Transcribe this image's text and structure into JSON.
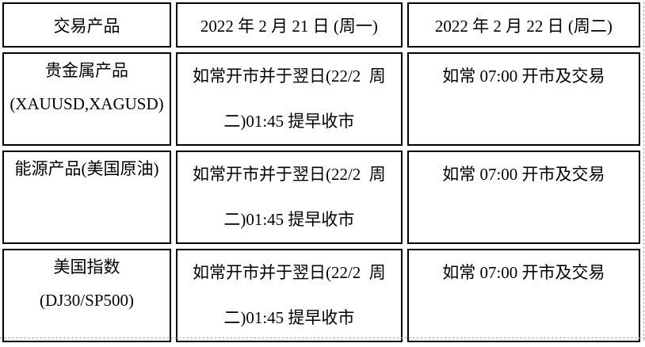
{
  "table": {
    "columns": [
      "交易产品",
      "2022 年 2 月 21 日 (周一)",
      "2022 年 2 月 22 日 (周二)"
    ],
    "rows": [
      {
        "product": {
          "line1": "贵金属产品",
          "line2": "(XAUUSD,XAGUSD)"
        },
        "monday": {
          "line1": "如常开市并于翌日(22/2  周",
          "line2": "二)01:45 提早收市"
        },
        "tuesday": {
          "line1": "如常 07:00 开市及交易",
          "line2": ""
        }
      },
      {
        "product": {
          "line1": "能源产品(美国原油)",
          "line2": ""
        },
        "monday": {
          "line1": "如常开市并于翌日(22/2  周",
          "line2": "二)01:45 提早收市"
        },
        "tuesday": {
          "line1": "如常 07:00 开市及交易",
          "line2": ""
        }
      },
      {
        "product": {
          "line1": "美国指数",
          "line2": "(DJ30/SP500)"
        },
        "monday": {
          "line1": "如常开市并于翌日(22/2  周",
          "line2": "二)01:45 提早收市"
        },
        "tuesday": {
          "line1": "如常 07:00 开市及交易",
          "line2": ""
        }
      }
    ]
  },
  "colors": {
    "background": "#ffffff",
    "text": "#000000",
    "border": "#000000",
    "boundary": "#ababab"
  }
}
